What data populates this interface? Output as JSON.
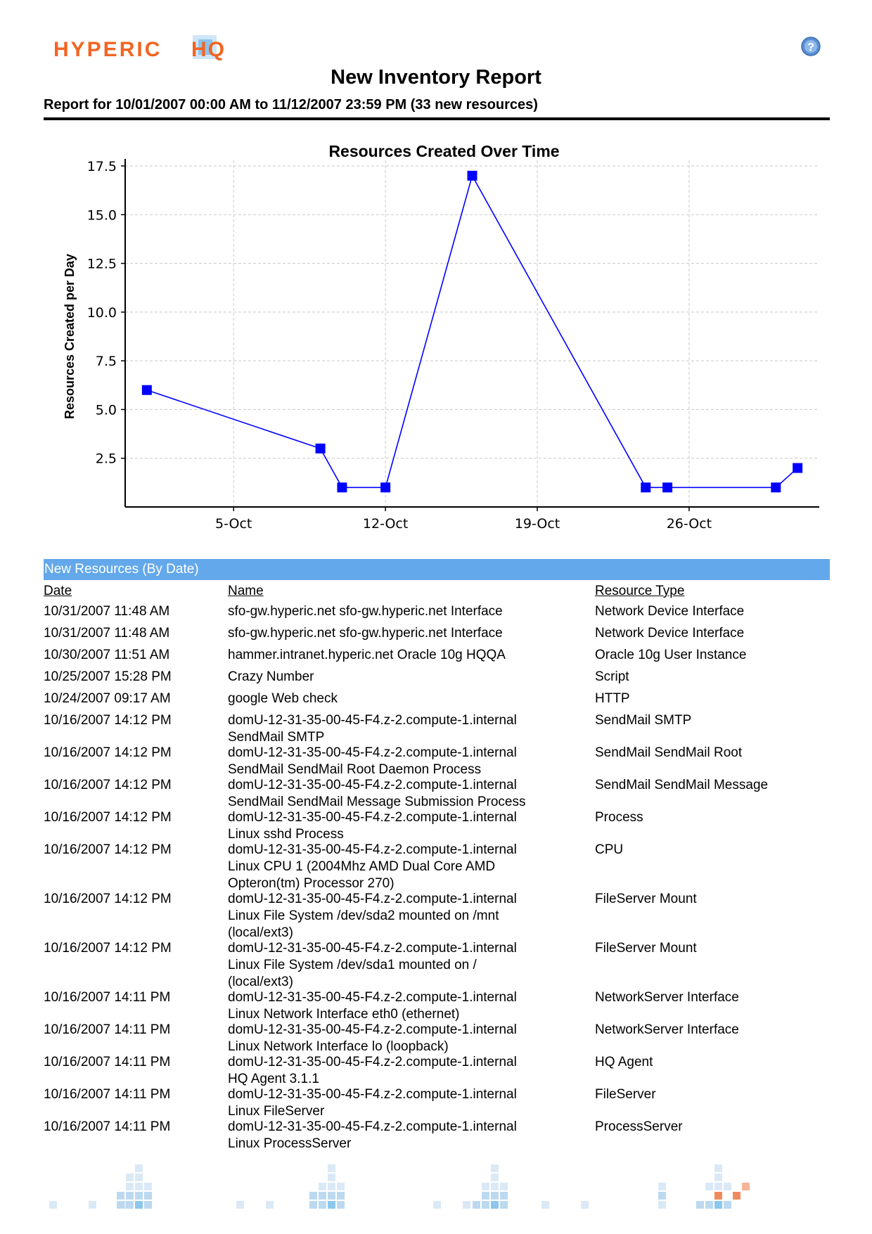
{
  "brand": {
    "logo_text": "HYPERIC HQ",
    "help_icon": "question-circle-icon"
  },
  "report": {
    "title": "New Inventory Report",
    "subtitle": "Report for 10/01/2007 00:00 AM to 11/12/2007 23:59 PM (33 new resources)"
  },
  "chart_data": {
    "type": "line",
    "title": "Resources Created Over Time",
    "ylabel": "Resources Created per Day",
    "xlabel": "",
    "ylim": [
      0,
      17.5
    ],
    "y_ticks": [
      "2.5",
      "5.0",
      "7.5",
      "10.0",
      "12.5",
      "15.0",
      "17.5"
    ],
    "x_ticks": [
      "5-Oct",
      "12-Oct",
      "19-Oct",
      "26-Oct"
    ],
    "x_range": [
      "2007-09-30",
      "2007-11-01"
    ],
    "grid": true,
    "marker": "square",
    "color": "#0000ff",
    "series": [
      {
        "points": [
          {
            "x": "2007-10-01",
            "y": 6
          },
          {
            "x": "2007-10-09",
            "y": 3
          },
          {
            "x": "2007-10-10",
            "y": 1
          },
          {
            "x": "2007-10-12",
            "y": 1
          },
          {
            "x": "2007-10-16",
            "y": 17
          },
          {
            "x": "2007-10-24",
            "y": 1
          },
          {
            "x": "2007-10-25",
            "y": 1
          },
          {
            "x": "2007-10-30",
            "y": 1
          },
          {
            "x": "2007-10-31",
            "y": 2
          }
        ]
      }
    ]
  },
  "table": {
    "section_title": "New Resources (By Date)",
    "headers": {
      "date": "Date",
      "name": "Name",
      "type": "Resource Type"
    },
    "rows": [
      {
        "date": "10/31/2007 11:48 AM",
        "name": [
          "sfo-gw.hyperic.net sfo-gw.hyperic.net  Interface"
        ],
        "type": "Network Device Interface"
      },
      {
        "date": "10/31/2007 11:48 AM",
        "name": [
          "sfo-gw.hyperic.net sfo-gw.hyperic.net  Interface"
        ],
        "type": "Network Device Interface"
      },
      {
        "date": "10/30/2007 11:51 AM",
        "name": [
          "hammer.intranet.hyperic.net Oracle 10g HQQA"
        ],
        "type": "Oracle 10g User Instance"
      },
      {
        "date": "10/25/2007 15:28 PM",
        "name": [
          "Crazy Number"
        ],
        "type": "Script"
      },
      {
        "date": "10/24/2007 09:17 AM",
        "name": [
          "google Web check"
        ],
        "type": "HTTP"
      },
      {
        "date": "10/16/2007 14:12 PM",
        "name": [
          "domU-12-31-35-00-45-F4.z-2.compute-1.internal",
          "SendMail SMTP"
        ],
        "type": "SendMail SMTP"
      },
      {
        "date": "10/16/2007 14:12 PM",
        "name": [
          "domU-12-31-35-00-45-F4.z-2.compute-1.internal",
          "SendMail SendMail Root Daemon Process"
        ],
        "type": "SendMail SendMail Root"
      },
      {
        "date": "10/16/2007 14:12 PM",
        "name": [
          "domU-12-31-35-00-45-F4.z-2.compute-1.internal",
          "SendMail SendMail Message Submission Process"
        ],
        "type": "SendMail SendMail Message"
      },
      {
        "date": "10/16/2007 14:12 PM",
        "name": [
          "domU-12-31-35-00-45-F4.z-2.compute-1.internal",
          "Linux sshd Process"
        ],
        "type": "Process"
      },
      {
        "date": "10/16/2007 14:12 PM",
        "name": [
          "domU-12-31-35-00-45-F4.z-2.compute-1.internal",
          "Linux CPU 1 (2004Mhz AMD Dual Core AMD",
          "Opteron(tm) Processor 270)"
        ],
        "type": "CPU"
      },
      {
        "date": "10/16/2007 14:12 PM",
        "name": [
          "domU-12-31-35-00-45-F4.z-2.compute-1.internal",
          "Linux File System /dev/sda2 mounted on /mnt",
          "(local/ext3)"
        ],
        "type": "FileServer Mount"
      },
      {
        "date": "10/16/2007 14:12 PM",
        "name": [
          "domU-12-31-35-00-45-F4.z-2.compute-1.internal",
          "Linux File System /dev/sda1 mounted on /",
          "(local/ext3)"
        ],
        "type": "FileServer Mount"
      },
      {
        "date": "10/16/2007 14:11 PM",
        "name": [
          "domU-12-31-35-00-45-F4.z-2.compute-1.internal",
          "Linux Network Interface eth0 (ethernet)"
        ],
        "type": "NetworkServer Interface"
      },
      {
        "date": "10/16/2007 14:11 PM",
        "name": [
          "domU-12-31-35-00-45-F4.z-2.compute-1.internal",
          "Linux Network Interface lo (loopback)"
        ],
        "type": "NetworkServer Interface"
      },
      {
        "date": "10/16/2007 14:11 PM",
        "name": [
          "domU-12-31-35-00-45-F4.z-2.compute-1.internal",
          "HQ Agent 3.1.1"
        ],
        "type": "HQ Agent"
      },
      {
        "date": "10/16/2007 14:11 PM",
        "name": [
          "domU-12-31-35-00-45-F4.z-2.compute-1.internal",
          "Linux FileServer"
        ],
        "type": "FileServer"
      },
      {
        "date": "10/16/2007 14:11 PM",
        "name": [
          "domU-12-31-35-00-45-F4.z-2.compute-1.internal",
          "Linux ProcessServer"
        ],
        "type": "ProcessServer"
      }
    ]
  }
}
